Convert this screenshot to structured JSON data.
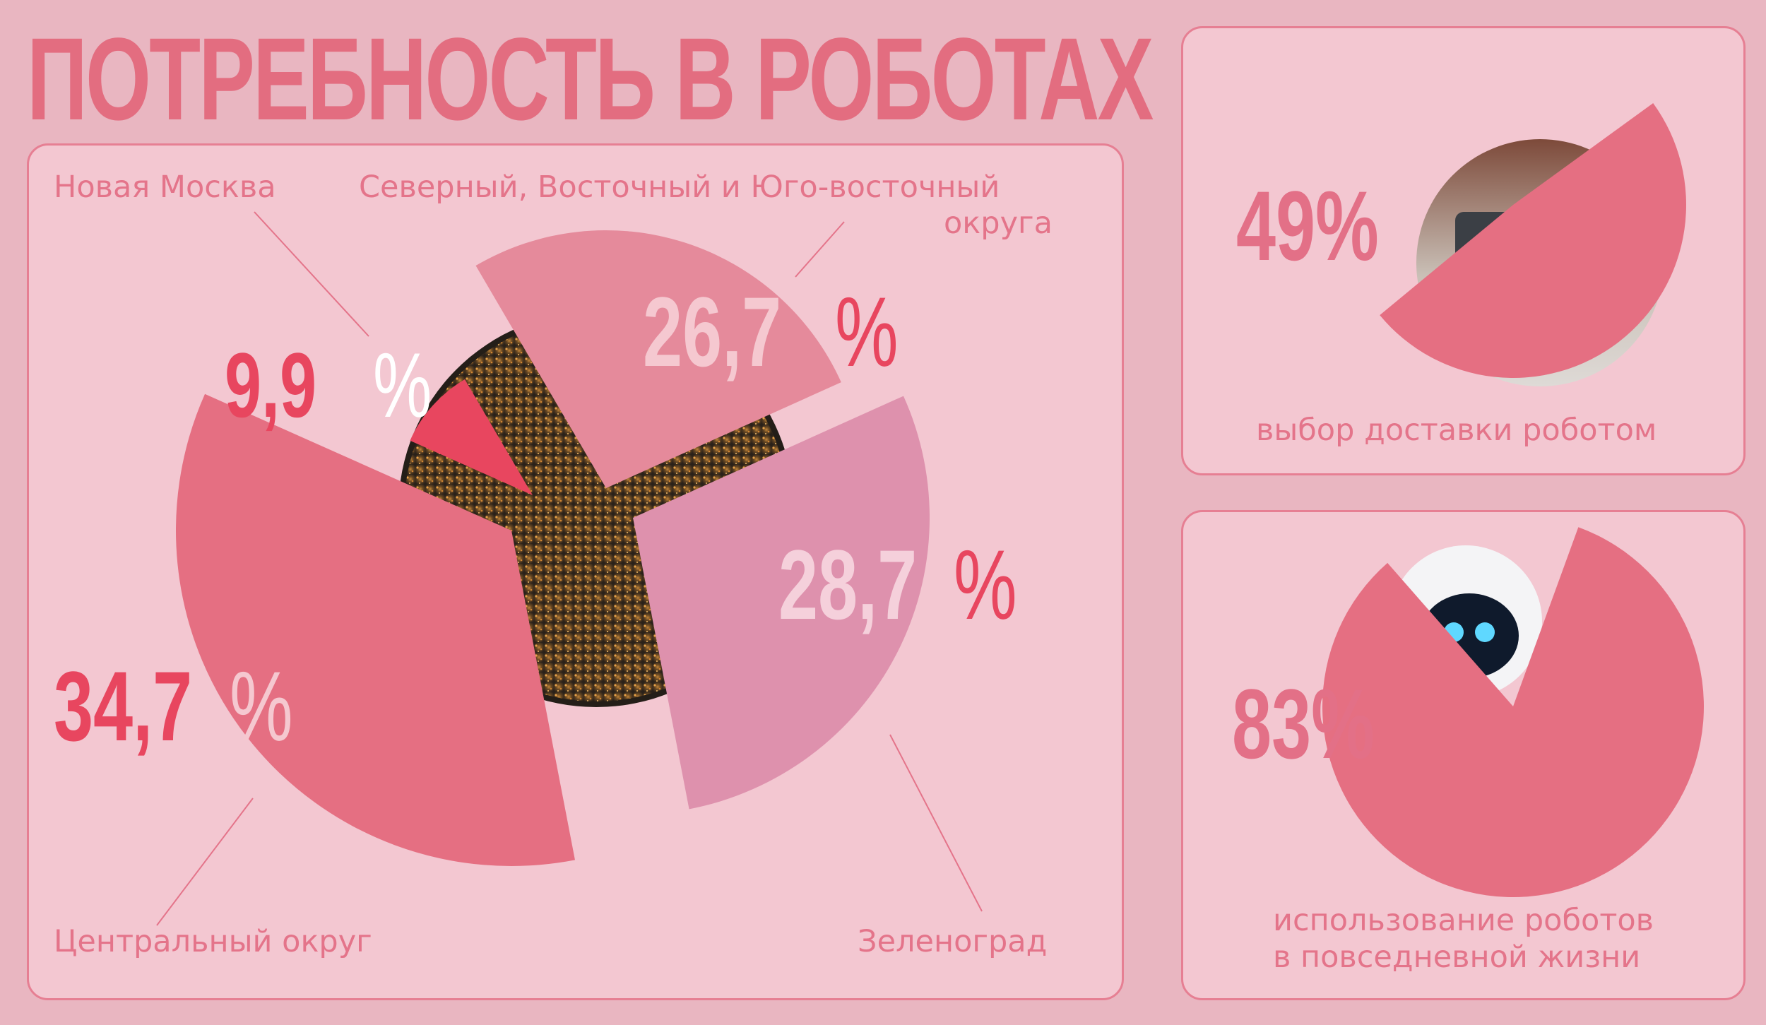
{
  "title": "ПОТРЕБНОСТЬ В РОБОТАХ",
  "colors": {
    "background": "#e9b6c1",
    "panel": "#f3c7d1",
    "border": "#e67f93",
    "text": "#e4748a",
    "dark_accent": "#e8465f"
  },
  "chart_data": [
    {
      "type": "pie",
      "title": "",
      "slices": [
        {
          "label": "Новая Москва",
          "value": 9.9,
          "value_text": "9,9",
          "unit": "%",
          "color": "#e8465f"
        },
        {
          "label": "Северный, Восточный и Юго-восточный округа",
          "value": 26.7,
          "value_text": "26,7",
          "unit": "%",
          "color": "#e58a9b"
        },
        {
          "label": "Зеленоград",
          "value": 28.7,
          "value_text": "28,7",
          "unit": "%",
          "color": "#de91ad"
        },
        {
          "label": "Центральный округ",
          "value": 34.7,
          "value_text": "34,7",
          "unit": "%",
          "color": "#e56f82"
        }
      ]
    },
    {
      "type": "pie",
      "title": "",
      "slices": [
        {
          "label": "выбор доставки роботом",
          "value": 49,
          "value_text": "49%",
          "color": "#e56f82"
        }
      ]
    },
    {
      "type": "pie",
      "title": "",
      "slices": [
        {
          "label": "использование роботов в повседневной жизни",
          "value": 83,
          "value_text": "83%",
          "color": "#e56f82"
        }
      ]
    }
  ],
  "labels": {
    "district_1_label": "Новая Москва",
    "district_2_label_line1": "Северный, Восточный и Юго-восточный",
    "district_2_label_line2": "округа",
    "district_3_label": "Зеленоград",
    "district_4_label": "Центральный округ",
    "delivery_label": "выбор доставки роботом",
    "daily_life_label_line1": "использование роботов",
    "daily_life_label_line2": "в повседневной жизни"
  }
}
